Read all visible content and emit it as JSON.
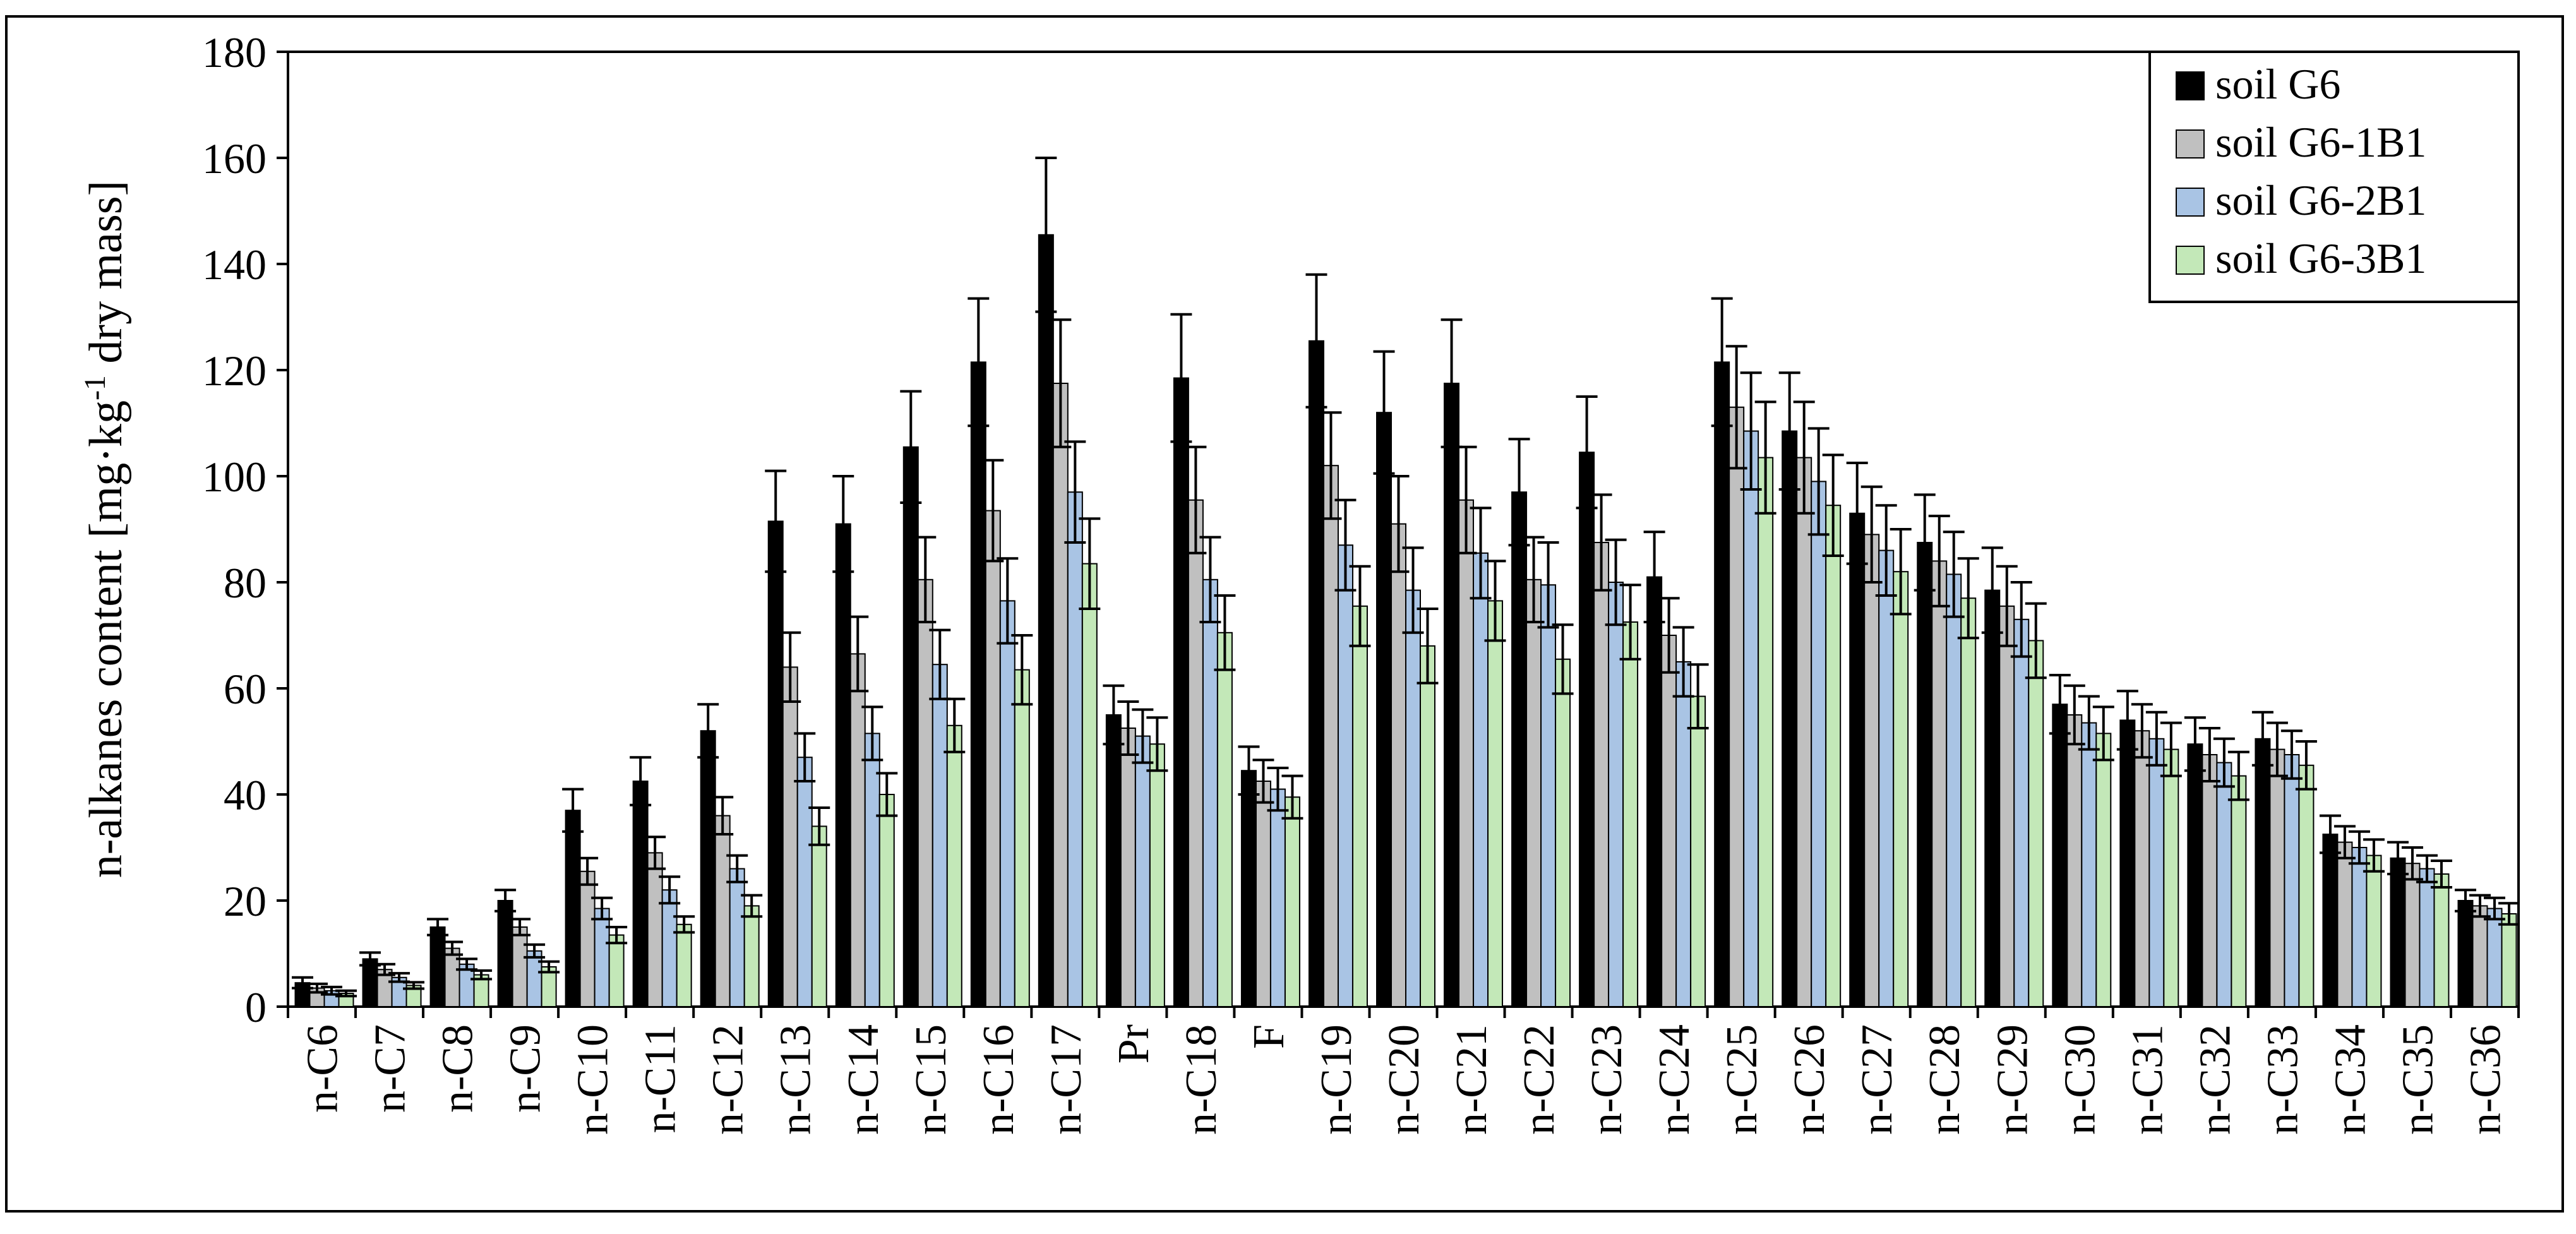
{
  "chart_data": {
    "type": "bar",
    "title": "",
    "xlabel": "",
    "ylabel": "n-alkanes content [mg·kg",
    "ylabel_sup": "-1",
    "ylabel_tail": " dry mass]",
    "ylim": [
      0,
      180
    ],
    "yticks": [
      0,
      20,
      40,
      60,
      80,
      100,
      120,
      140,
      160,
      180
    ],
    "grid": false,
    "legend_position": "top-right",
    "categories": [
      "n-C6",
      "n-C7",
      "n-C8",
      "n-C9",
      "n-C10",
      "n-C11",
      "n-C12",
      "n-C13",
      "n-C14",
      "n-C15",
      "n-C16",
      "n-C17",
      "Pr",
      "n-C18",
      "F",
      "n-C19",
      "n-C20",
      "n-C21",
      "n-C22",
      "n-C23",
      "n-C24",
      "n-C25",
      "n-C26",
      "n-C27",
      "n-C28",
      "n-C29",
      "n-C30",
      "n-C31",
      "n-C32",
      "n-C33",
      "n-C34",
      "n-C35",
      "n-C36"
    ],
    "series": [
      {
        "name": "soil G6",
        "color": "#000000",
        "values": [
          4.5,
          9,
          15,
          20,
          37,
          42.5,
          52,
          91.5,
          91,
          105.5,
          121.5,
          145.5,
          55,
          118.5,
          44.5,
          125.5,
          112,
          117.5,
          97,
          104.5,
          81,
          121.5,
          108.5,
          93,
          87.5,
          78.5,
          57,
          54,
          49.5,
          50.5,
          32.5,
          28,
          20
        ],
        "errors": [
          1,
          1.2,
          1.5,
          2,
          4,
          4.5,
          5,
          9.5,
          9,
          10.5,
          12,
          14.5,
          5.5,
          12,
          4.5,
          12.5,
          11.5,
          12,
          10,
          10.5,
          8.5,
          12,
          11,
          9.5,
          9,
          8,
          5.5,
          5.5,
          5,
          5,
          3.5,
          3,
          2
        ]
      },
      {
        "name": "soil G6-1B1",
        "color": "#c0c0c0",
        "values": [
          3.5,
          7,
          11,
          15,
          25.5,
          29,
          36,
          64,
          66.5,
          80.5,
          93.5,
          117.5,
          52.5,
          95.5,
          42.5,
          102,
          91,
          95.5,
          80.5,
          87.5,
          70,
          113,
          103.5,
          89,
          84,
          75.5,
          55,
          52,
          47.5,
          48.5,
          31,
          27,
          19
        ],
        "errors": [
          0.8,
          1,
          1.2,
          1.5,
          2.5,
          3,
          3.5,
          6.5,
          7,
          8,
          9.5,
          12,
          5,
          10,
          4,
          10,
          9,
          10,
          8,
          9,
          7,
          11.5,
          10.5,
          9,
          8.5,
          7.5,
          5.5,
          5,
          5,
          5,
          3,
          3,
          2
        ]
      },
      {
        "name": "soil G6-2B1",
        "color": "#a9c4e4",
        "values": [
          3,
          5.5,
          8,
          10.5,
          18.5,
          22,
          26,
          47,
          51.5,
          64.5,
          76.5,
          97,
          51,
          80.5,
          41,
          87,
          78.5,
          85.5,
          79.5,
          80,
          65,
          108.5,
          99,
          86,
          81.5,
          73,
          53.5,
          50.5,
          46,
          47.5,
          30,
          26,
          18.5
        ],
        "errors": [
          0.7,
          0.8,
          1,
          1.2,
          2,
          2.5,
          2.5,
          4.5,
          5,
          6.5,
          8,
          9.5,
          5,
          8,
          4,
          8.5,
          8,
          8.5,
          8,
          8,
          6.5,
          11,
          10,
          8.5,
          8,
          7,
          5,
          5,
          4.5,
          4.5,
          3,
          2.5,
          2
        ]
      },
      {
        "name": "soil G6-3B1",
        "color": "#c3e8b8",
        "values": [
          2.5,
          4,
          6,
          7.5,
          13.5,
          15.5,
          19,
          34,
          40,
          53,
          63.5,
          83.5,
          49.5,
          70.5,
          39.5,
          75.5,
          68,
          76.5,
          65.5,
          72.5,
          58.5,
          103.5,
          94.5,
          82,
          77,
          69,
          51.5,
          48.5,
          43.5,
          45.5,
          28.5,
          25,
          17.5
        ],
        "errors": [
          0.5,
          0.6,
          0.8,
          1,
          1.5,
          1.5,
          2,
          3.5,
          4,
          5,
          6.5,
          8.5,
          5,
          7,
          4,
          7.5,
          7,
          7.5,
          6.5,
          7,
          6,
          10.5,
          9.5,
          8,
          7.5,
          7,
          5,
          5,
          4.5,
          4.5,
          3,
          2.5,
          2
        ]
      }
    ]
  }
}
